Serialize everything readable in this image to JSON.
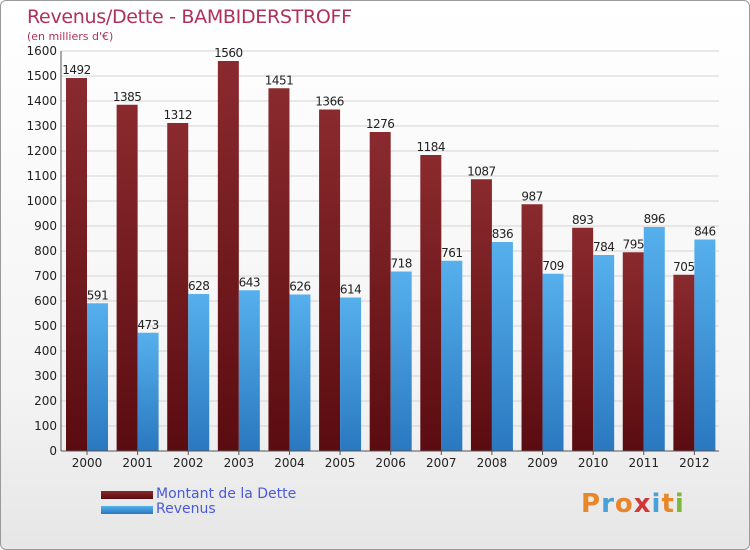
{
  "title": "Revenus/Dette - BAMBIDERSTROFF",
  "subtitle": "(en milliers d'€)",
  "logo": {
    "letters": [
      "P",
      "r",
      "o",
      "x",
      "i",
      "t",
      "i"
    ],
    "colors": [
      "#e8862a",
      "#4aa0d8",
      "#e8862a",
      "#d03838",
      "#4aa0d8",
      "#e8862a",
      "#7cb83a"
    ]
  },
  "colors": {
    "dette": "#7a1e22",
    "revenus": "#3a9ae0",
    "title": "#b0305a",
    "legend_text": "#4a5ad8"
  },
  "legend": [
    {
      "key": "dette",
      "label": "Montant de la Dette"
    },
    {
      "key": "revenus",
      "label": "Revenus"
    }
  ],
  "chart_data": {
    "type": "bar",
    "categories": [
      "2000",
      "2001",
      "2002",
      "2003",
      "2004",
      "2005",
      "2006",
      "2007",
      "2008",
      "2009",
      "2010",
      "2011",
      "2012"
    ],
    "series": [
      {
        "name": "Montant de la Dette",
        "values": [
          1492,
          1385,
          1312,
          1560,
          1451,
          1366,
          1276,
          1184,
          1087,
          987,
          893,
          795,
          705
        ]
      },
      {
        "name": "Revenus",
        "values": [
          591,
          473,
          628,
          643,
          626,
          614,
          718,
          761,
          836,
          709,
          784,
          896,
          846
        ]
      }
    ],
    "ylim": [
      0,
      1600
    ],
    "yticks": [
      0,
      100,
      200,
      300,
      400,
      500,
      600,
      700,
      800,
      900,
      1000,
      1100,
      1200,
      1300,
      1400,
      1500,
      1600
    ],
    "grid": true,
    "legend_position": "bottom-left"
  }
}
